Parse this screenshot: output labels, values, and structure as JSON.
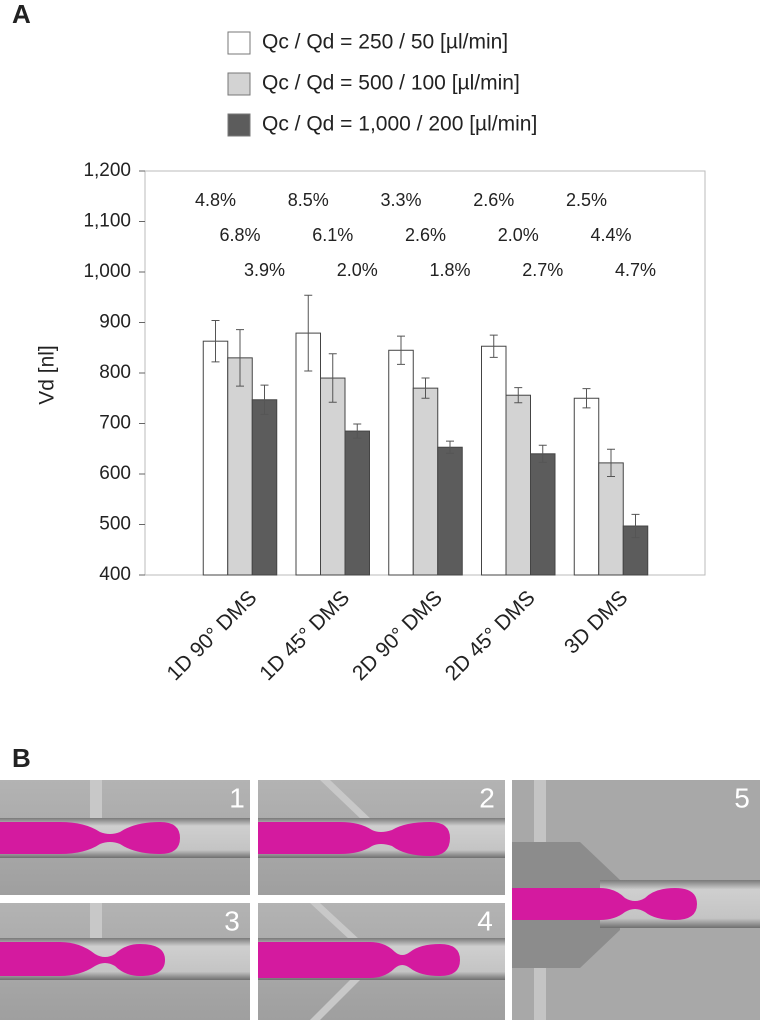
{
  "chart_data": {
    "type": "bar",
    "panel_label": "A",
    "y_label": "Vd [nl]",
    "categories": [
      "1D 90° DMS",
      "1D 45° DMS",
      "2D 90° DMS",
      "2D 45° DMS",
      "3D DMS"
    ],
    "series": [
      {
        "name": "Qc / Qd = 250 / 50 [µl/min]",
        "color": "#ffffff",
        "values": [
          863,
          879,
          845,
          853,
          750
        ],
        "errors": [
          41,
          75,
          28,
          22,
          19
        ],
        "annotations": [
          "4.8%",
          "8.5%",
          "3.3%",
          "2.6%",
          "2.5%"
        ]
      },
      {
        "name": "Qc / Qd = 500 / 100 [µl/min]",
        "color": "#d3d3d3",
        "values": [
          830,
          790,
          770,
          756,
          622
        ],
        "errors": [
          56,
          48,
          20,
          15,
          27
        ],
        "annotations": [
          "6.8%",
          "6.1%",
          "2.6%",
          "2.0%",
          "4.4%"
        ]
      },
      {
        "name": "Qc / Qd = 1,000 / 200 [µl/min]",
        "color": "#5c5c5c",
        "values": [
          747,
          685,
          653,
          640,
          497
        ],
        "errors": [
          29,
          14,
          12,
          17,
          23
        ],
        "annotations": [
          "3.9%",
          "2.0%",
          "1.8%",
          "2.7%",
          "4.7%"
        ]
      }
    ],
    "ylim": [
      400,
      1200
    ],
    "yticks": [
      400,
      500,
      600,
      700,
      800,
      900,
      {
        "value": 1000,
        "label": "1,000"
      },
      {
        "value": 1100,
        "label": "1,100"
      },
      {
        "value": 1200,
        "label": "1,200"
      }
    ]
  },
  "photos": {
    "panel_label": "B",
    "labels": [
      "1",
      "2",
      "3",
      "4",
      "5"
    ]
  }
}
